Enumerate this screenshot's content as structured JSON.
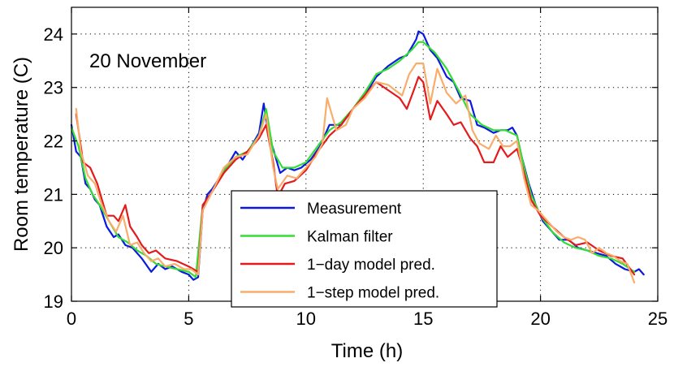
{
  "chart_data": {
    "type": "line",
    "annotation": "20 November",
    "xlabel": "Time (h)",
    "ylabel": "Room temperature (C)",
    "xlim": [
      0,
      25
    ],
    "ylim": [
      19,
      24.5
    ],
    "x_ticks": [
      0,
      5,
      10,
      15,
      20,
      25
    ],
    "y_ticks": [
      19,
      20,
      21,
      22,
      23,
      24
    ],
    "grid": true,
    "legend_position": "bottom-center",
    "series": [
      {
        "name": "Measurement",
        "color": "#0a1adf",
        "points": [
          [
            0,
            22.3
          ],
          [
            0.2,
            21.8
          ],
          [
            0.4,
            21.7
          ],
          [
            0.6,
            21.2
          ],
          [
            0.8,
            21.1
          ],
          [
            1.0,
            20.9
          ],
          [
            1.2,
            20.8
          ],
          [
            1.5,
            20.4
          ],
          [
            1.8,
            20.2
          ],
          [
            2.0,
            20.25
          ],
          [
            2.3,
            20.05
          ],
          [
            2.6,
            20.0
          ],
          [
            3.0,
            19.8
          ],
          [
            3.4,
            19.55
          ],
          [
            3.7,
            19.7
          ],
          [
            4.0,
            19.6
          ],
          [
            4.3,
            19.65
          ],
          [
            4.7,
            19.55
          ],
          [
            5.0,
            19.5
          ],
          [
            5.2,
            19.4
          ],
          [
            5.4,
            19.45
          ],
          [
            5.6,
            20.7
          ],
          [
            5.8,
            21.0
          ],
          [
            6.0,
            21.1
          ],
          [
            6.3,
            21.3
          ],
          [
            6.6,
            21.5
          ],
          [
            7.0,
            21.8
          ],
          [
            7.3,
            21.65
          ],
          [
            7.6,
            21.85
          ],
          [
            8.0,
            22.15
          ],
          [
            8.2,
            22.7
          ],
          [
            8.3,
            22.4
          ],
          [
            8.5,
            22.0
          ],
          [
            8.7,
            21.7
          ],
          [
            8.9,
            21.4
          ],
          [
            9.2,
            21.5
          ],
          [
            9.5,
            21.45
          ],
          [
            9.8,
            21.5
          ],
          [
            10.2,
            21.65
          ],
          [
            10.6,
            21.9
          ],
          [
            11.0,
            22.3
          ],
          [
            11.5,
            22.3
          ],
          [
            12.0,
            22.6
          ],
          [
            12.5,
            22.85
          ],
          [
            13.0,
            23.2
          ],
          [
            13.5,
            23.4
          ],
          [
            14.0,
            23.55
          ],
          [
            14.3,
            23.6
          ],
          [
            14.5,
            23.75
          ],
          [
            14.7,
            23.9
          ],
          [
            14.8,
            24.05
          ],
          [
            15.0,
            24.0
          ],
          [
            15.3,
            23.7
          ],
          [
            15.6,
            23.55
          ],
          [
            16.0,
            23.2
          ],
          [
            16.3,
            23.1
          ],
          [
            16.6,
            22.8
          ],
          [
            17.0,
            22.75
          ],
          [
            17.3,
            22.3
          ],
          [
            17.6,
            22.25
          ],
          [
            18.0,
            22.15
          ],
          [
            18.3,
            22.2
          ],
          [
            18.6,
            22.2
          ],
          [
            18.8,
            22.25
          ],
          [
            19.0,
            22.1
          ],
          [
            19.2,
            21.7
          ],
          [
            19.5,
            21.2
          ],
          [
            19.8,
            20.8
          ],
          [
            20.1,
            20.5
          ],
          [
            20.5,
            20.3
          ],
          [
            20.8,
            20.15
          ],
          [
            21.2,
            20.15
          ],
          [
            21.6,
            20.0
          ],
          [
            22.0,
            19.95
          ],
          [
            22.4,
            19.9
          ],
          [
            22.8,
            19.85
          ],
          [
            23.2,
            19.7
          ],
          [
            23.6,
            19.6
          ],
          [
            24.0,
            19.55
          ],
          [
            24.2,
            19.6
          ],
          [
            24.4,
            19.5
          ]
        ]
      },
      {
        "name": "Kalman filter",
        "color": "#33dd33",
        "points": [
          [
            0,
            22.25
          ],
          [
            0.3,
            21.9
          ],
          [
            0.6,
            21.3
          ],
          [
            0.9,
            21.0
          ],
          [
            1.2,
            20.8
          ],
          [
            1.6,
            20.5
          ],
          [
            2.0,
            20.2
          ],
          [
            2.4,
            20.1
          ],
          [
            2.8,
            19.95
          ],
          [
            3.2,
            19.85
          ],
          [
            3.6,
            19.7
          ],
          [
            4.0,
            19.65
          ],
          [
            4.5,
            19.6
          ],
          [
            5.0,
            19.55
          ],
          [
            5.3,
            19.45
          ],
          [
            5.6,
            20.8
          ],
          [
            6.0,
            21.05
          ],
          [
            6.5,
            21.45
          ],
          [
            7.0,
            21.7
          ],
          [
            7.5,
            21.8
          ],
          [
            8.0,
            22.1
          ],
          [
            8.3,
            22.6
          ],
          [
            8.6,
            21.8
          ],
          [
            9.0,
            21.5
          ],
          [
            9.5,
            21.5
          ],
          [
            10.0,
            21.6
          ],
          [
            10.5,
            21.9
          ],
          [
            11.0,
            22.2
          ],
          [
            11.5,
            22.35
          ],
          [
            12.0,
            22.6
          ],
          [
            12.5,
            22.9
          ],
          [
            13.0,
            23.25
          ],
          [
            13.5,
            23.35
          ],
          [
            14.0,
            23.5
          ],
          [
            14.5,
            23.7
          ],
          [
            14.8,
            23.85
          ],
          [
            15.0,
            23.85
          ],
          [
            15.5,
            23.65
          ],
          [
            16.0,
            23.35
          ],
          [
            16.5,
            22.95
          ],
          [
            17.0,
            22.5
          ],
          [
            17.5,
            22.3
          ],
          [
            18.0,
            22.2
          ],
          [
            18.5,
            22.2
          ],
          [
            19.0,
            22.1
          ],
          [
            19.3,
            21.5
          ],
          [
            19.6,
            21.0
          ],
          [
            20.0,
            20.6
          ],
          [
            20.5,
            20.3
          ],
          [
            21.0,
            20.1
          ],
          [
            21.5,
            20.0
          ],
          [
            22.0,
            19.95
          ],
          [
            22.5,
            19.85
          ],
          [
            23.0,
            19.8
          ],
          [
            23.5,
            19.7
          ],
          [
            24.0,
            19.55
          ]
        ]
      },
      {
        "name": "1−day model pred.",
        "color": "#e41a1c",
        "points": [
          [
            0.2,
            22.5
          ],
          [
            0.5,
            21.6
          ],
          [
            0.8,
            21.5
          ],
          [
            1.1,
            21.2
          ],
          [
            1.5,
            20.6
          ],
          [
            1.8,
            20.6
          ],
          [
            2.0,
            20.5
          ],
          [
            2.3,
            20.8
          ],
          [
            2.5,
            20.4
          ],
          [
            2.8,
            20.2
          ],
          [
            3.0,
            20.05
          ],
          [
            3.3,
            19.9
          ],
          [
            3.6,
            19.95
          ],
          [
            4.0,
            19.8
          ],
          [
            4.5,
            19.75
          ],
          [
            5.0,
            19.65
          ],
          [
            5.4,
            19.55
          ],
          [
            5.6,
            20.8
          ],
          [
            6.0,
            21.05
          ],
          [
            6.5,
            21.4
          ],
          [
            7.0,
            21.65
          ],
          [
            7.5,
            21.8
          ],
          [
            8.0,
            22.05
          ],
          [
            8.3,
            22.3
          ],
          [
            8.6,
            21.6
          ],
          [
            8.8,
            20.95
          ],
          [
            9.1,
            21.2
          ],
          [
            9.5,
            21.25
          ],
          [
            10.0,
            21.45
          ],
          [
            10.5,
            21.8
          ],
          [
            11.0,
            22.1
          ],
          [
            11.5,
            22.3
          ],
          [
            12.0,
            22.6
          ],
          [
            12.5,
            22.85
          ],
          [
            13.0,
            23.1
          ],
          [
            13.5,
            22.95
          ],
          [
            14.0,
            22.8
          ],
          [
            14.3,
            22.6
          ],
          [
            14.6,
            22.95
          ],
          [
            14.8,
            23.2
          ],
          [
            15.0,
            23.1
          ],
          [
            15.3,
            22.4
          ],
          [
            15.6,
            22.75
          ],
          [
            16.0,
            22.5
          ],
          [
            16.3,
            22.3
          ],
          [
            16.6,
            22.35
          ],
          [
            17.0,
            22.05
          ],
          [
            17.3,
            21.9
          ],
          [
            17.6,
            21.6
          ],
          [
            18.0,
            21.6
          ],
          [
            18.3,
            21.9
          ],
          [
            18.6,
            21.7
          ],
          [
            19.0,
            21.85
          ],
          [
            19.3,
            21.4
          ],
          [
            19.6,
            20.9
          ],
          [
            20.0,
            20.6
          ],
          [
            20.5,
            20.4
          ],
          [
            21.0,
            20.2
          ],
          [
            21.5,
            20.05
          ],
          [
            22.0,
            20.1
          ],
          [
            22.5,
            19.95
          ],
          [
            23.0,
            19.85
          ],
          [
            23.5,
            19.8
          ],
          [
            24.0,
            19.5
          ]
        ]
      },
      {
        "name": "1−step model pred.",
        "color": "#f8ad6b",
        "points": [
          [
            0.2,
            22.6
          ],
          [
            0.4,
            21.8
          ],
          [
            0.7,
            21.35
          ],
          [
            1.0,
            21.2
          ],
          [
            1.3,
            20.8
          ],
          [
            1.6,
            20.5
          ],
          [
            1.9,
            20.3
          ],
          [
            2.2,
            20.6
          ],
          [
            2.5,
            20.05
          ],
          [
            2.8,
            20.1
          ],
          [
            3.1,
            19.9
          ],
          [
            3.4,
            19.75
          ],
          [
            3.7,
            19.8
          ],
          [
            4.0,
            19.65
          ],
          [
            4.4,
            19.7
          ],
          [
            4.8,
            19.6
          ],
          [
            5.1,
            19.6
          ],
          [
            5.4,
            19.5
          ],
          [
            5.6,
            20.7
          ],
          [
            6.0,
            21.05
          ],
          [
            6.5,
            21.5
          ],
          [
            7.0,
            21.7
          ],
          [
            7.5,
            21.75
          ],
          [
            8.0,
            22.1
          ],
          [
            8.3,
            22.5
          ],
          [
            8.6,
            21.5
          ],
          [
            8.8,
            21.1
          ],
          [
            9.2,
            21.35
          ],
          [
            9.6,
            21.3
          ],
          [
            10.0,
            21.5
          ],
          [
            10.4,
            21.7
          ],
          [
            10.7,
            21.95
          ],
          [
            10.9,
            22.8
          ],
          [
            11.3,
            22.2
          ],
          [
            11.7,
            22.3
          ],
          [
            12.0,
            22.6
          ],
          [
            12.5,
            22.8
          ],
          [
            13.0,
            23.1
          ],
          [
            13.5,
            23.05
          ],
          [
            13.8,
            22.95
          ],
          [
            14.1,
            22.85
          ],
          [
            14.4,
            23.25
          ],
          [
            14.7,
            23.45
          ],
          [
            15.0,
            23.45
          ],
          [
            15.3,
            22.7
          ],
          [
            15.6,
            23.35
          ],
          [
            16.0,
            22.9
          ],
          [
            16.4,
            22.7
          ],
          [
            16.8,
            22.85
          ],
          [
            17.1,
            22.2
          ],
          [
            17.4,
            21.95
          ],
          [
            17.8,
            21.85
          ],
          [
            18.1,
            22.1
          ],
          [
            18.4,
            21.9
          ],
          [
            18.7,
            21.9
          ],
          [
            19.0,
            22.0
          ],
          [
            19.3,
            21.3
          ],
          [
            19.6,
            20.8
          ],
          [
            19.9,
            20.7
          ],
          [
            20.3,
            20.5
          ],
          [
            20.7,
            20.3
          ],
          [
            21.0,
            20.2
          ],
          [
            21.3,
            20.15
          ],
          [
            21.6,
            20.2
          ],
          [
            21.9,
            20.15
          ],
          [
            22.2,
            19.9
          ],
          [
            22.5,
            20.0
          ],
          [
            22.8,
            19.9
          ],
          [
            23.1,
            19.85
          ],
          [
            23.4,
            19.75
          ],
          [
            23.7,
            19.7
          ],
          [
            24.0,
            19.35
          ]
        ]
      }
    ]
  }
}
